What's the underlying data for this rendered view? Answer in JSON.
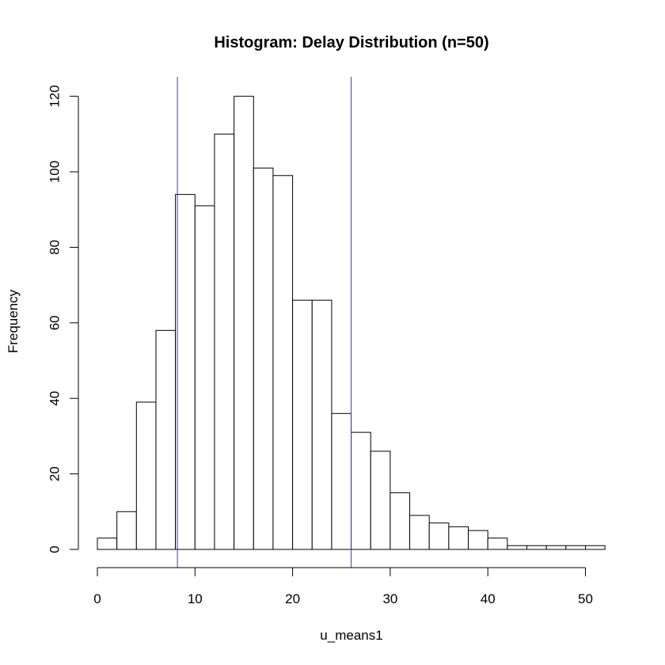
{
  "chart_data": {
    "type": "histogram",
    "title": "Histogram: Delay Distribution (n=50)",
    "xlabel": "u_means1",
    "ylabel": "Frequency",
    "bin_width": 2,
    "bins": [
      {
        "x0": 0,
        "x1": 2,
        "count": 3
      },
      {
        "x0": 2,
        "x1": 4,
        "count": 10
      },
      {
        "x0": 4,
        "x1": 6,
        "count": 39
      },
      {
        "x0": 6,
        "x1": 8,
        "count": 58
      },
      {
        "x0": 8,
        "x1": 10,
        "count": 94
      },
      {
        "x0": 10,
        "x1": 12,
        "count": 91
      },
      {
        "x0": 12,
        "x1": 14,
        "count": 110
      },
      {
        "x0": 14,
        "x1": 16,
        "count": 120
      },
      {
        "x0": 16,
        "x1": 18,
        "count": 101
      },
      {
        "x0": 18,
        "x1": 20,
        "count": 99
      },
      {
        "x0": 20,
        "x1": 22,
        "count": 66
      },
      {
        "x0": 22,
        "x1": 24,
        "count": 66
      },
      {
        "x0": 24,
        "x1": 26,
        "count": 36
      },
      {
        "x0": 26,
        "x1": 28,
        "count": 31
      },
      {
        "x0": 28,
        "x1": 30,
        "count": 26
      },
      {
        "x0": 30,
        "x1": 32,
        "count": 15
      },
      {
        "x0": 32,
        "x1": 34,
        "count": 9
      },
      {
        "x0": 34,
        "x1": 36,
        "count": 7
      },
      {
        "x0": 36,
        "x1": 38,
        "count": 6
      },
      {
        "x0": 38,
        "x1": 40,
        "count": 5
      },
      {
        "x0": 40,
        "x1": 42,
        "count": 3
      },
      {
        "x0": 42,
        "x1": 44,
        "count": 1
      },
      {
        "x0": 44,
        "x1": 46,
        "count": 1
      },
      {
        "x0": 46,
        "x1": 48,
        "count": 1
      },
      {
        "x0": 48,
        "x1": 50,
        "count": 1
      },
      {
        "x0": 50,
        "x1": 52,
        "count": 1
      }
    ],
    "x_ticks": [
      0,
      10,
      20,
      30,
      40,
      50
    ],
    "y_ticks": [
      0,
      20,
      40,
      60,
      80,
      100,
      120
    ],
    "xlim": [
      0,
      52
    ],
    "ylim": [
      0,
      125
    ],
    "reference_lines": [
      {
        "x": 8.2,
        "color": "#4040a0"
      },
      {
        "x": 26.0,
        "color": "#4040a0"
      }
    ],
    "grid": false,
    "legend": "none"
  }
}
